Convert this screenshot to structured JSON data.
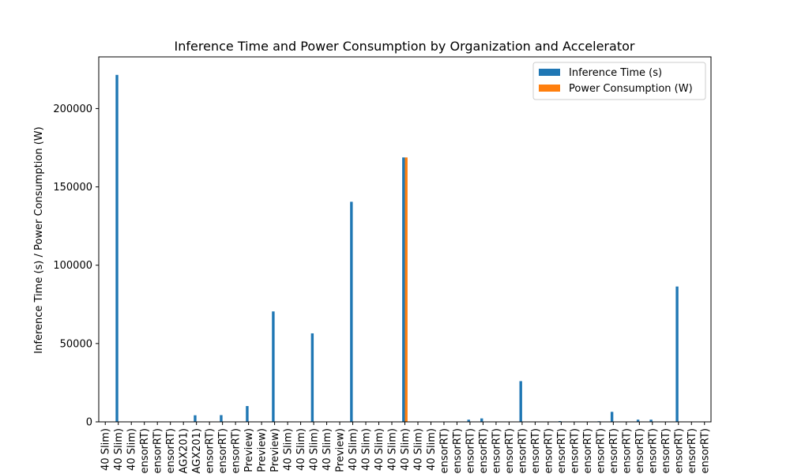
{
  "chart_data": {
    "type": "bar",
    "title": "Inference Time and Power Consumption by Organization and Accelerator",
    "xlabel": "",
    "ylabel": "Inference Time (s) / Power Consumption (W)",
    "ylim": [
      0,
      233000
    ],
    "yticks": [
      0,
      50000,
      100000,
      150000,
      200000
    ],
    "ytick_labels": [
      "0",
      "50000",
      "100000",
      "150000",
      "200000"
    ],
    "grid": false,
    "legend_position": "top-right",
    "categories": [
      "40 Slim)",
      "40 Slim)",
      "40 Slim)",
      "ensorRT)",
      "ensorRT)",
      "ensorRT)",
      "AGX201)",
      "AGX201)",
      "ensorRT)",
      "ensorRT)",
      "ensorRT)",
      "Preview)",
      "Preview)",
      "Preview)",
      "40 Slim)",
      "40 Slim)",
      "40 Slim)",
      "40 Slim)",
      "Preview)",
      "40 Slim)",
      "40 Slim)",
      "40 Slim)",
      "40 Slim)",
      "40 Slim)",
      "40 Slim)",
      "40 Slim)",
      "ensorRT)",
      "ensorRT)",
      "ensorRT)",
      "ensorRT)",
      "ensorRT)",
      "ensorRT)",
      "ensorRT)",
      "ensorRT)",
      "ensorRT)",
      "ensorRT)",
      "ensorRT)",
      "ensorRT)",
      "ensorRT)",
      "ensorRT)",
      "ensorRT)",
      "ensorRT)",
      "ensorRT)",
      "ensorRT)",
      "ensorRT)",
      "ensorRT)",
      "ensorRT)"
    ],
    "series": [
      {
        "name": "Inference Time (s)",
        "color": "#1f77b4",
        "values": [
          0,
          221500,
          0,
          0,
          0,
          0,
          0,
          4200,
          0,
          4300,
          0,
          10100,
          0,
          70500,
          0,
          0,
          56500,
          0,
          0,
          140500,
          0,
          0,
          0,
          168800,
          0,
          0,
          0,
          0,
          1400,
          2200,
          0,
          0,
          26000,
          0,
          0,
          500,
          0,
          0,
          400,
          6400,
          0,
          1400,
          1400,
          0,
          86400,
          0,
          0
        ]
      },
      {
        "name": "Power Consumption (W)",
        "color": "#ff7f0e",
        "values": [
          0,
          0,
          0,
          0,
          0,
          0,
          0,
          0,
          0,
          0,
          0,
          0,
          0,
          0,
          0,
          0,
          0,
          0,
          0,
          0,
          0,
          0,
          0,
          168800,
          0,
          0,
          0,
          0,
          0,
          0,
          0,
          0,
          0,
          0,
          0,
          0,
          0,
          0,
          0,
          0,
          0,
          0,
          0,
          0,
          0,
          0,
          0
        ]
      }
    ]
  }
}
